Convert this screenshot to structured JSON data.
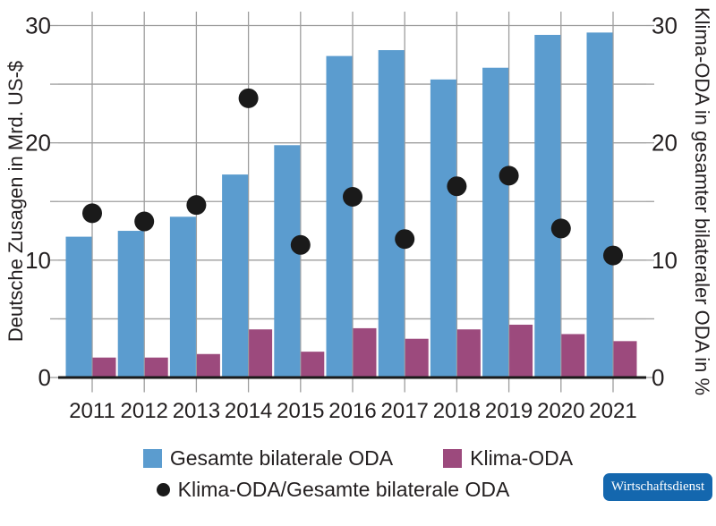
{
  "chart_data": {
    "type": "bar",
    "title": "",
    "categories": [
      "2011",
      "2012",
      "2013",
      "2014",
      "2015",
      "2016",
      "2017",
      "2018",
      "2019",
      "2020",
      "2021"
    ],
    "series": [
      {
        "name": "Gesamte bilaterale ODA",
        "type": "bar",
        "axis": "left",
        "color": "#5b9ccf",
        "values": [
          12.0,
          12.5,
          13.7,
          17.3,
          19.8,
          27.4,
          27.9,
          25.4,
          26.4,
          29.2,
          29.4
        ]
      },
      {
        "name": "Klima-ODA",
        "type": "bar",
        "axis": "left",
        "color": "#9c4a7d",
        "values": [
          1.7,
          1.7,
          2.0,
          4.1,
          2.2,
          4.2,
          3.3,
          4.1,
          4.5,
          3.7,
          3.1
        ]
      },
      {
        "name": "Klima-ODA/Gesamte bilaterale ODA",
        "type": "scatter",
        "axis": "right",
        "color": "#1a1a1a",
        "values": [
          14.0,
          13.3,
          14.7,
          23.8,
          11.3,
          15.4,
          11.8,
          16.3,
          17.2,
          12.7,
          10.4
        ]
      }
    ],
    "ylabel_left": "Deutsche Zusagen in Mrd. US-$",
    "ylabel_right": "Klima-ODA in gesamter bilateraler ODA in %",
    "ylim": [
      0,
      30
    ],
    "yticks": [
      0,
      10,
      20,
      30
    ],
    "minor_grid_step": 5,
    "grid": true,
    "legend_position": "bottom",
    "colors": {
      "grid": "#9e9e9e",
      "axis": "#1a1a1a",
      "text": "#231f20"
    }
  },
  "branding": {
    "label": "Wirtschaftsdienst",
    "bg": "#1467ae",
    "text_color": "#ffffff"
  }
}
